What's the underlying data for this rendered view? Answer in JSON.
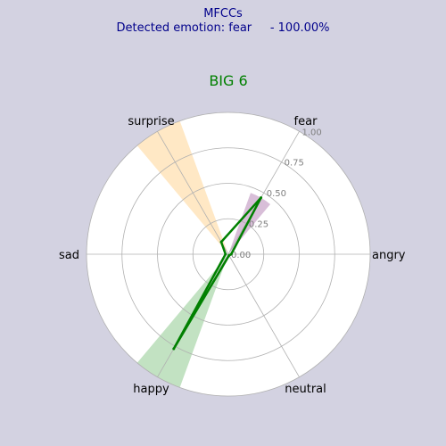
{
  "header": {
    "title": "MFCCs",
    "detected_label": "Detected emotion:",
    "emotion": "fear",
    "score": "- 100.00%"
  },
  "chart_data": {
    "type": "polar",
    "title": "BIG 6",
    "categories": [
      "angry",
      "fear",
      "surprise",
      "sad",
      "happy",
      "neutral"
    ],
    "radial_ticks": [
      "0.00",
      "0.25",
      "0.50",
      "0.75",
      "1.00"
    ],
    "rlim": [
      0,
      1
    ],
    "series": [
      {
        "values": [
          0.02,
          0.46,
          0.1,
          0.02,
          0.77,
          0.01
        ],
        "colors": {
          "line": "#008000"
        }
      }
    ],
    "sectors": [
      {
        "category": "fear",
        "value": 0.46,
        "color": "#c8a2c8"
      },
      {
        "category": "surprise",
        "value": 1.0,
        "color": "#ffdead"
      },
      {
        "category": "happy",
        "value": 1.0,
        "color": "#a8d5a8"
      }
    ],
    "colors": {
      "title": "#008000",
      "background": "#d3d2e1",
      "axes": "#ffffff",
      "grid": "#b0b0b0"
    }
  }
}
